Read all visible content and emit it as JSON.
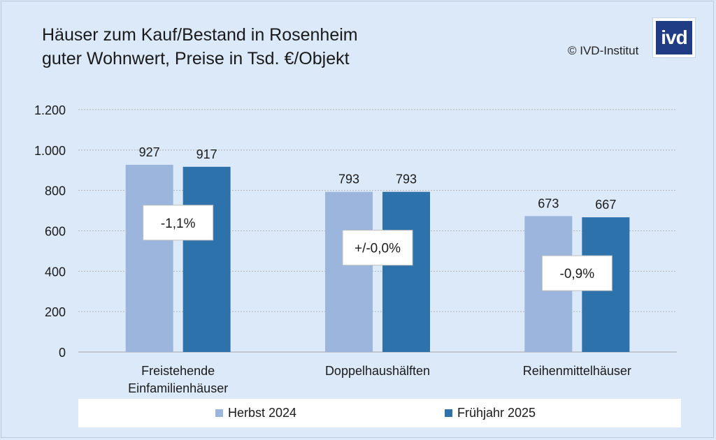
{
  "title_line1": "Häuser zum Kauf/Bestand in Rosenheim",
  "title_line2": "guter Wohnwert, Preise in Tsd. €/Objekt",
  "copyright": "© IVD-Institut",
  "logo_text": "ivd",
  "colors": {
    "background": "#dce9f8",
    "series_2024": "#9bb5dc",
    "series_2025": "#2e72ab",
    "grid": "#b3b3b3"
  },
  "chart_data": {
    "type": "bar",
    "title": "Häuser zum Kauf/Bestand in Rosenheim",
    "subtitle": "guter Wohnwert, Preise in Tsd. €/Objekt",
    "categories": [
      [
        "Freistehende",
        "Einfamilienhäuser"
      ],
      [
        "Doppelhaushälften"
      ],
      [
        "Reihenmittelhäuser"
      ]
    ],
    "series": [
      {
        "name": "Herbst 2024",
        "values": [
          927,
          793,
          673
        ],
        "labels": [
          "927",
          "793",
          "673"
        ]
      },
      {
        "name": "Frühjahr 2025",
        "values": [
          917,
          793,
          667
        ],
        "labels": [
          "917",
          "793",
          "667"
        ]
      }
    ],
    "change_labels": [
      "-1,1%",
      "+/-0,0%",
      "-0,9%"
    ],
    "ylim": [
      0,
      1200
    ],
    "yticks": [
      0,
      200,
      400,
      600,
      800,
      1000,
      1200
    ],
    "ytick_labels": [
      "0",
      "200",
      "400",
      "600",
      "800",
      "1.000",
      "1.200"
    ],
    "grid": true,
    "legend_position": "bottom"
  }
}
